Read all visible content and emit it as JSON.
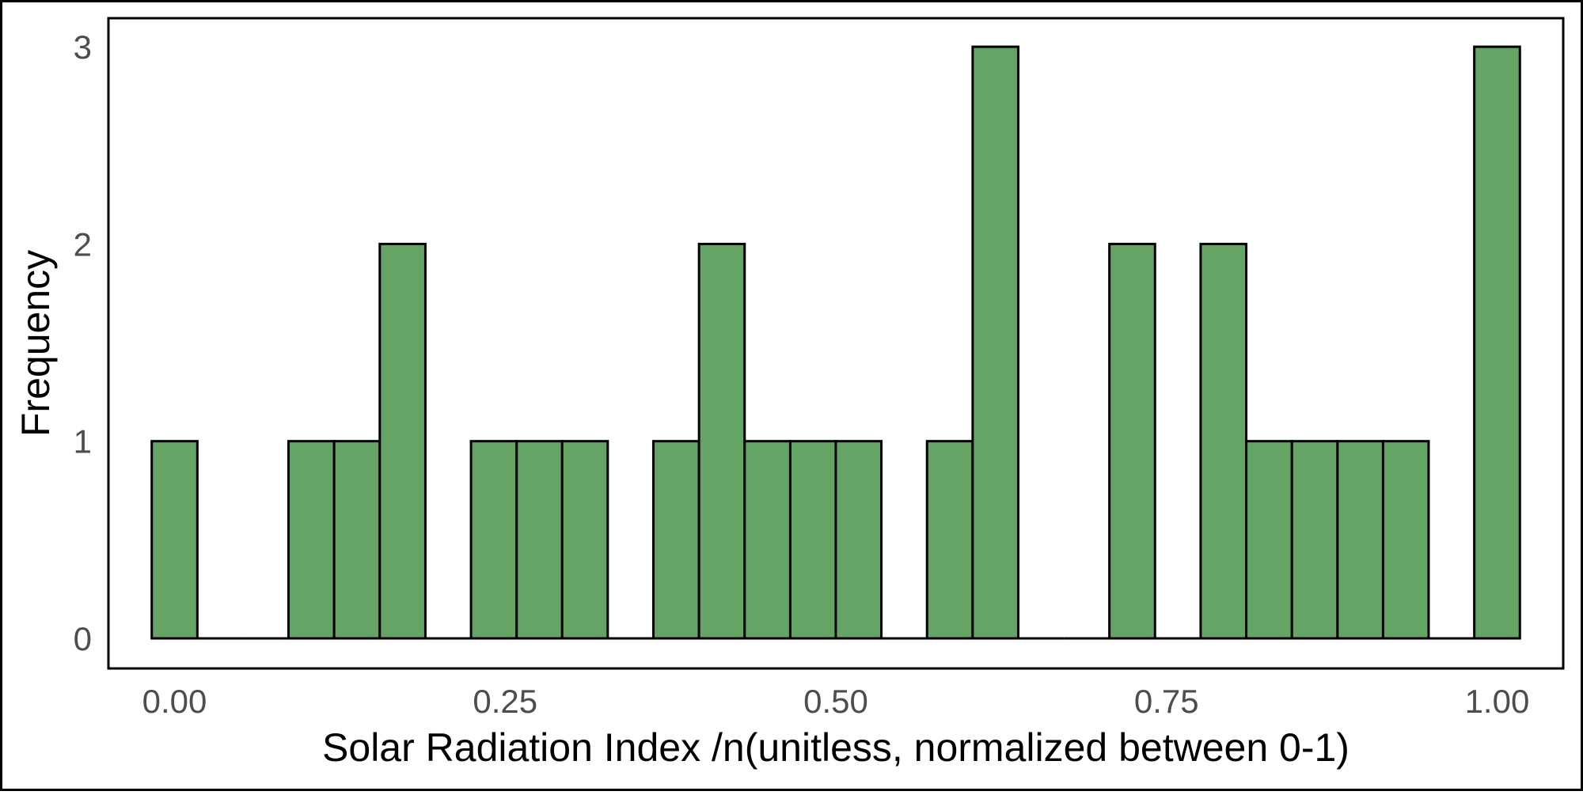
{
  "chart_data": {
    "type": "bar",
    "xlabel": "Solar Radiation Index /n(unitless, normalized between 0-1)",
    "ylabel": "Frequency",
    "xlim": [
      -0.05,
      1.05
    ],
    "ylim": [
      0,
      3.15
    ],
    "x_ticks": [
      {
        "value": 0.0,
        "label": "0.00"
      },
      {
        "value": 0.25,
        "label": "0.25"
      },
      {
        "value": 0.5,
        "label": "0.50"
      },
      {
        "value": 0.75,
        "label": "0.75"
      },
      {
        "value": 1.0,
        "label": "1.00"
      }
    ],
    "y_ticks": [
      {
        "value": 0,
        "label": "0"
      },
      {
        "value": 1,
        "label": "1"
      },
      {
        "value": 2,
        "label": "2"
      },
      {
        "value": 3,
        "label": "3"
      }
    ],
    "bin_width": 0.03448,
    "bin_centers": [
      0.0,
      0.0345,
      0.069,
      0.1034,
      0.1379,
      0.1724,
      0.2069,
      0.2414,
      0.2759,
      0.3103,
      0.3448,
      0.3793,
      0.4138,
      0.4483,
      0.4828,
      0.5172,
      0.5517,
      0.5862,
      0.6207,
      0.6552,
      0.6897,
      0.7241,
      0.7586,
      0.7931,
      0.8276,
      0.8621,
      0.8966,
      0.931,
      0.9655,
      1.0
    ],
    "values": [
      1,
      0,
      0,
      1,
      1,
      2,
      0,
      1,
      1,
      1,
      0,
      1,
      2,
      1,
      1,
      1,
      0,
      1,
      3,
      0,
      0,
      2,
      0,
      2,
      1,
      1,
      1,
      1,
      0,
      3
    ],
    "bar_fill": "#66a466",
    "bar_stroke": "#000000",
    "grid": false
  }
}
